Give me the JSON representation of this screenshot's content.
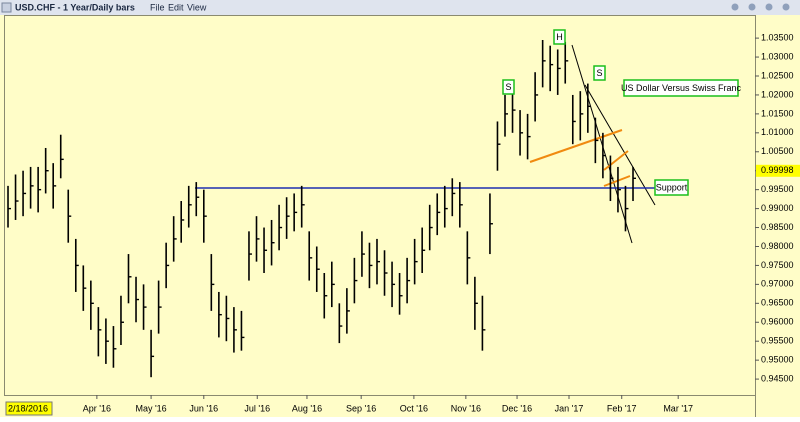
{
  "window": {
    "title": "USD.CHF - 1 Year/Daily bars",
    "menu": [
      "File",
      "Edit",
      "View"
    ]
  },
  "chart_data": {
    "type": "ohlc",
    "date_marker": "2/18/2016",
    "last_price": 0.99998,
    "annotations": [
      "S",
      "H",
      "S",
      "US Dollar Versus Swiss Franc",
      "Support"
    ],
    "color": "#000000",
    "ylim": [
      0.9408,
      1.0411
    ],
    "yticks": [
      {
        "value": 0.945,
        "label": "0.94500"
      },
      {
        "value": 0.95,
        "label": "0.95000"
      },
      {
        "value": 0.955,
        "label": "0.95500"
      },
      {
        "value": 0.96,
        "label": "0.96000"
      },
      {
        "value": 0.965,
        "label": "0.96500"
      },
      {
        "value": 0.97,
        "label": "0.97000"
      },
      {
        "value": 0.975,
        "label": "0.97500"
      },
      {
        "value": 0.98,
        "label": "0.98000"
      },
      {
        "value": 0.985,
        "label": "0.98500"
      },
      {
        "value": 0.99,
        "label": "0.99000"
      },
      {
        "value": 0.995,
        "label": "0.99500"
      },
      {
        "value": 1.0,
        "label": "1.00000"
      },
      {
        "value": 1.005,
        "label": "1.00500"
      },
      {
        "value": 1.01,
        "label": "1.01000"
      },
      {
        "value": 1.015,
        "label": "1.01500"
      },
      {
        "value": 1.02,
        "label": "1.02000"
      },
      {
        "value": 1.025,
        "label": "1.02500"
      },
      {
        "value": 1.03,
        "label": "1.03000"
      },
      {
        "value": 1.035,
        "label": "1.03500"
      }
    ],
    "xlim": [
      -0.4,
      99.2
    ],
    "xticks": [
      {
        "value": 11.8,
        "label": "Apr '16"
      },
      {
        "value": 19.0,
        "label": "May '16"
      },
      {
        "value": 26.0,
        "label": "Jun '16"
      },
      {
        "value": 33.1,
        "label": "Jul '16"
      },
      {
        "value": 39.7,
        "label": "Aug '16"
      },
      {
        "value": 46.9,
        "label": "Sep '16"
      },
      {
        "value": 53.9,
        "label": "Oct '16"
      },
      {
        "value": 60.8,
        "label": "Nov '16"
      },
      {
        "value": 67.6,
        "label": "Dec '16"
      },
      {
        "value": 74.5,
        "label": "Jan '17"
      },
      {
        "value": 81.5,
        "label": "Feb '17"
      },
      {
        "value": 89.0,
        "label": "Mar '17"
      }
    ],
    "high": [
      0.996,
      0.999,
      1.0,
      1.001,
      1.001,
      1.006,
      1.002,
      1.0095,
      0.995,
      0.982,
      0.975,
      0.971,
      0.964,
      0.961,
      0.959,
      0.967,
      0.978,
      0.972,
      0.97,
      0.958,
      0.971,
      0.981,
      0.988,
      0.992,
      0.996,
      0.997,
      0.995,
      0.978,
      0.968,
      0.967,
      0.964,
      0.963,
      0.984,
      0.988,
      0.985,
      0.987,
      0.991,
      0.993,
      0.994,
      0.996,
      0.984,
      0.98,
      0.973,
      0.976,
      0.965,
      0.969,
      0.977,
      0.984,
      0.981,
      0.982,
      0.979,
      0.976,
      0.973,
      0.977,
      0.982,
      0.985,
      0.991,
      0.994,
      0.996,
      0.998,
      0.997,
      0.984,
      0.972,
      0.967,
      0.994,
      1.013,
      1.02,
      1.021,
      1.016,
      1.015,
      1.026,
      1.0345,
      1.033,
      1.032,
      1.034,
      1.02,
      1.021,
      1.023,
      1.014,
      1.01,
      1.004,
      1.001,
      0.996,
      1.001
    ],
    "low": [
      0.985,
      0.987,
      0.988,
      0.99,
      0.989,
      0.994,
      0.99,
      0.998,
      0.981,
      0.968,
      0.963,
      0.958,
      0.951,
      0.949,
      0.948,
      0.954,
      0.965,
      0.96,
      0.958,
      0.9455,
      0.957,
      0.969,
      0.976,
      0.981,
      0.985,
      0.988,
      0.981,
      0.963,
      0.956,
      0.955,
      0.952,
      0.9525,
      0.971,
      0.976,
      0.973,
      0.975,
      0.979,
      0.982,
      0.984,
      0.985,
      0.971,
      0.968,
      0.961,
      0.964,
      0.9545,
      0.957,
      0.965,
      0.972,
      0.969,
      0.97,
      0.967,
      0.964,
      0.962,
      0.965,
      0.97,
      0.973,
      0.979,
      0.983,
      0.985,
      0.988,
      0.985,
      0.97,
      0.958,
      0.9525,
      0.978,
      1.0,
      1.009,
      1.01,
      1.004,
      1.003,
      1.013,
      1.022,
      1.021,
      1.02,
      1.023,
      1.007,
      1.008,
      1.01,
      1.002,
      0.998,
      0.992,
      0.989,
      0.984,
      0.992
    ],
    "close": [
      0.99,
      0.992,
      0.994,
      0.996,
      0.995,
      1.0,
      0.996,
      1.003,
      0.988,
      0.975,
      0.969,
      0.965,
      0.958,
      0.955,
      0.953,
      0.96,
      0.972,
      0.966,
      0.964,
      0.951,
      0.964,
      0.975,
      0.982,
      0.987,
      0.991,
      0.993,
      0.988,
      0.97,
      0.962,
      0.961,
      0.958,
      0.956,
      0.978,
      0.982,
      0.979,
      0.981,
      0.985,
      0.988,
      0.989,
      0.991,
      0.977,
      0.974,
      0.967,
      0.97,
      0.959,
      0.963,
      0.971,
      0.978,
      0.975,
      0.976,
      0.973,
      0.97,
      0.967,
      0.971,
      0.976,
      0.979,
      0.985,
      0.989,
      0.99,
      0.994,
      0.991,
      0.977,
      0.965,
      0.958,
      0.986,
      1.007,
      1.015,
      1.016,
      1.01,
      1.009,
      1.02,
      1.029,
      1.028,
      1.027,
      1.029,
      1.013,
      1.015,
      1.017,
      1.008,
      1.004,
      0.998,
      0.995,
      0.99,
      0.998
    ]
  }
}
